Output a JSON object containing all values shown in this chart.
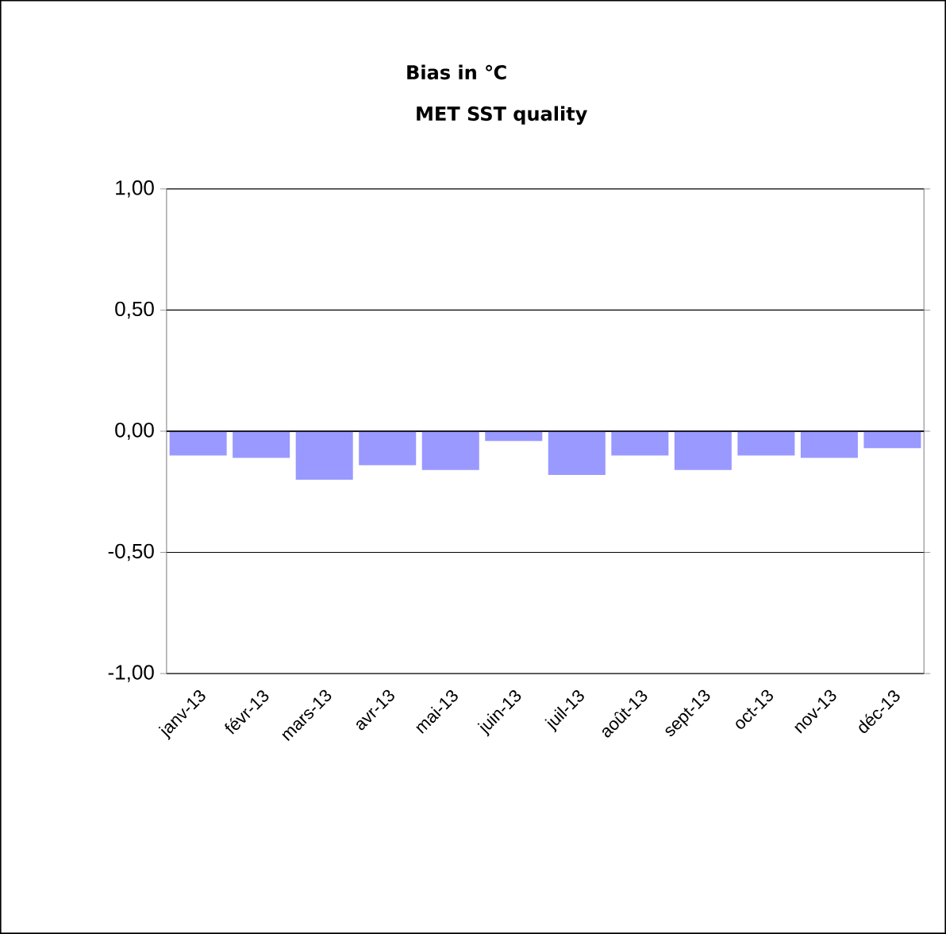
{
  "chart_data": {
    "type": "bar",
    "title": "Bias  in ℃",
    "subtitle": "MET SST quality",
    "categories": [
      "janv-13",
      "févr-13",
      "mars-13",
      "avr-13",
      "mai-13",
      "juin-13",
      "juil-13",
      "août-13",
      "sept-13",
      "oct-13",
      "nov-13",
      "déc-13"
    ],
    "values": [
      -0.1,
      -0.11,
      -0.2,
      -0.14,
      -0.16,
      -0.04,
      -0.18,
      -0.1,
      -0.16,
      -0.1,
      -0.11,
      -0.07
    ],
    "color": "#9999ff",
    "ylim": [
      -1,
      1
    ],
    "yticks": [
      {
        "value": -1,
        "label": "-1,00"
      },
      {
        "value": -0.5,
        "label": "-0,50"
      },
      {
        "value": 0,
        "label": "0,00"
      },
      {
        "value": 0.5,
        "label": "0,50"
      },
      {
        "value": 1,
        "label": "1,00"
      }
    ],
    "grid": "y"
  }
}
